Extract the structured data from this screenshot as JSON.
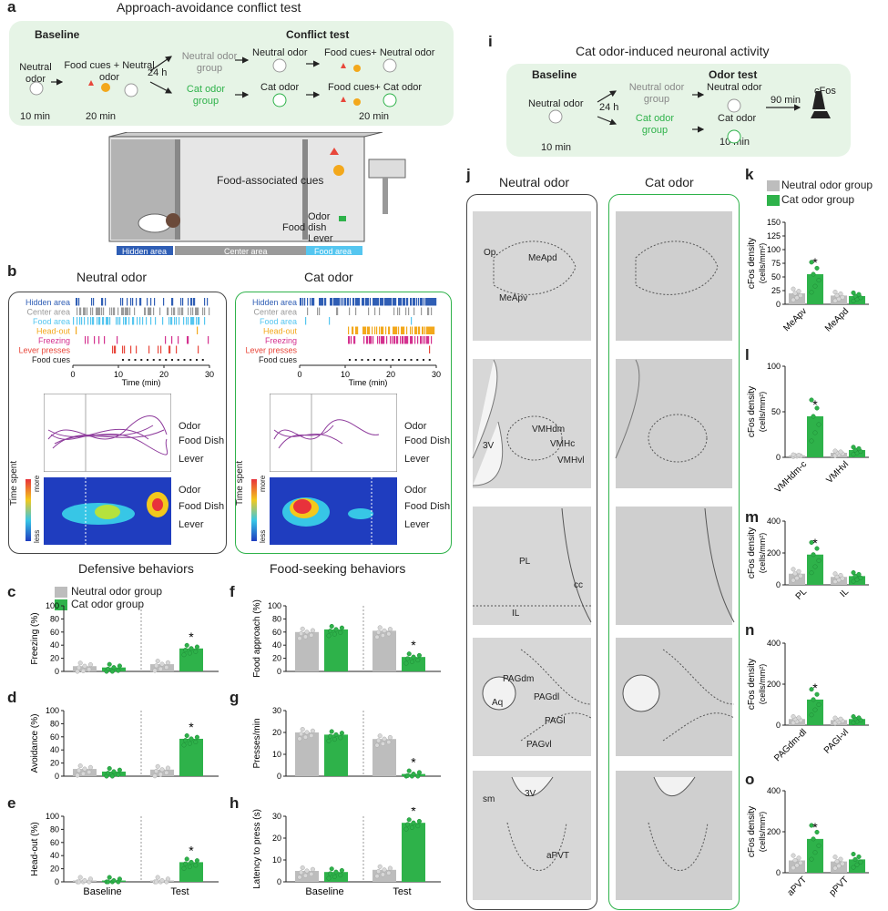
{
  "panel_a": {
    "letter": "a",
    "title": "Approach-avoidance conflict test",
    "baseline_label": "Baseline",
    "conflict_label": "Conflict test",
    "neutral_odor": "Neutral odor",
    "food_cues_neutral": "Food cues + Neutral odor",
    "h24": "24 h",
    "neutral_group": "Neutral odor group",
    "cat_group": "Cat odor group",
    "test_neutral": "Neutral odor",
    "test_cat": "Cat odor",
    "food_neutral": "Food cues+ Neutral odor",
    "food_cat": "Food cues+ Cat odor",
    "t10": "10 min",
    "t20": "20 min",
    "t20b": "20 min",
    "food_assoc": "Food-associated cues",
    "odor": "Odor",
    "food_dish": "Food dish",
    "lever": "Lever",
    "hidden_area": "Hidden area",
    "center_area": "Center area",
    "food_area": "Food area"
  },
  "panel_b": {
    "letter": "b",
    "neutral_title": "Neutral odor",
    "cat_title": "Cat odor",
    "rows": [
      "Hidden area",
      "Center area",
      "Food area",
      "Head-out",
      "Freezing",
      "Lever presses",
      "Food cues"
    ],
    "row_colors": [
      "#2f5eb5",
      "#9a9a9a",
      "#55c6f0",
      "#f3a81c",
      "#d4318f",
      "#e8473b",
      "#222222"
    ],
    "time_label": "Time (min)",
    "ticks": [
      "0",
      "10",
      "20",
      "30"
    ],
    "legend_odor": "Odor",
    "legend_dish": "Food Dish",
    "legend_lever": "Lever",
    "time_spent": "Time spent",
    "more": "more",
    "less": "less"
  },
  "panel_c": {
    "letter": "c",
    "section": "Defensive behaviors",
    "legend_neutral": "Neutral odor group",
    "legend_cat": "Cat odor group",
    "ylabel": "Freezing (%)",
    "yticks": [
      "0",
      "20",
      "40",
      "60",
      "80",
      "100"
    ]
  },
  "panel_d": {
    "letter": "d",
    "ylabel": "Avoidance (%)",
    "yticks": [
      "0",
      "20",
      "40",
      "60",
      "80",
      "100"
    ]
  },
  "panel_e": {
    "letter": "e",
    "ylabel": "Head-out (%)",
    "yticks": [
      "0",
      "20",
      "40",
      "60",
      "80",
      "100"
    ],
    "xlabels": [
      "Baseline",
      "Test"
    ]
  },
  "panel_f": {
    "letter": "f",
    "section": "Food-seeking behaviors",
    "ylabel": "Food approach (%)",
    "yticks": [
      "0",
      "20",
      "40",
      "60",
      "80",
      "100"
    ]
  },
  "panel_g": {
    "letter": "g",
    "ylabel": "Presses/min",
    "yticks": [
      "0",
      "10",
      "20",
      "30"
    ]
  },
  "panel_h": {
    "letter": "h",
    "ylabel": "Latency to press (s)",
    "yticks": [
      "0",
      "10",
      "20",
      "30"
    ],
    "xlabels": [
      "Baseline",
      "Test"
    ]
  },
  "panel_i": {
    "letter": "i",
    "title": "Cat odor-induced neuronal activity",
    "baseline": "Baseline",
    "odor_test": "Odor test",
    "neutral_odor": "Neutral odor",
    "h24": "24 h",
    "neutral_group": "Neutral odor group",
    "cat_group": "Cat odor group",
    "test_neutral": "Neutral odor",
    "test_cat": "Cat odor",
    "min90": "90 min",
    "cfos": "cFos",
    "t10": "10 min",
    "t10b": "10 min"
  },
  "panel_j": {
    "letter": "j",
    "neutral_title": "Neutral odor",
    "cat_title": "Cat odor",
    "slice1": [
      "Op.",
      "MeApd",
      "MeApv"
    ],
    "slice2": [
      "VMHdm",
      "VMHc",
      "VMHvl",
      "3V"
    ],
    "slice3": [
      "PL",
      "cc",
      "IL"
    ],
    "slice4": [
      "PAGdm",
      "PAGdl",
      "PAGl",
      "PAGvl",
      "Aq"
    ],
    "slice5": [
      "sm",
      "3V",
      "aPVT"
    ]
  },
  "panel_k": {
    "letter": "k",
    "legend_neutral": "Neutral odor group",
    "legend_cat": "Cat odor group",
    "ylabel": "cFos density",
    "yunit": "(cells/mm²)",
    "yticks": [
      "0",
      "25",
      "50",
      "75",
      "100",
      "125",
      "150"
    ],
    "xlabels": [
      "MeApv",
      "MeApd"
    ]
  },
  "panel_l": {
    "letter": "l",
    "ylabel": "cFos density",
    "yunit": "(cells/mm²)",
    "yticks": [
      "0",
      "50",
      "100"
    ],
    "xlabels": [
      "VMHdm-c",
      "VMHvl"
    ]
  },
  "panel_m": {
    "letter": "m",
    "ylabel": "cFos density",
    "yunit": "(cells/mm²)",
    "yticks": [
      "0",
      "200",
      "400"
    ],
    "xlabels": [
      "PL",
      "IL"
    ]
  },
  "panel_n": {
    "letter": "n",
    "ylabel": "cFos density",
    "yunit": "(cells/mm²)",
    "yticks": [
      "0",
      "200",
      "400"
    ],
    "xlabels": [
      "PAGdm-dl",
      "PAGl-vl"
    ]
  },
  "panel_o": {
    "letter": "o",
    "ylabel": "cFos density",
    "yunit": "(cells/mm²)",
    "yticks": [
      "0",
      "200",
      "400"
    ],
    "xlabels": [
      "aPVT",
      "pPVT"
    ]
  },
  "colors": {
    "neutral": "#bdbdbd",
    "cat": "#2eb24a",
    "greenbg": "#e6f4e6"
  },
  "chart_data": [
    {
      "id": "c",
      "type": "bar",
      "ylabel": "Freezing (%)",
      "ylim": [
        0,
        100
      ],
      "categories": [
        "Baseline",
        "Test"
      ],
      "series": [
        {
          "name": "Neutral odor group",
          "values": [
            8,
            11
          ]
        },
        {
          "name": "Cat odor group",
          "values": [
            6,
            35
          ]
        }
      ],
      "significant": [
        [
          1,
          1
        ]
      ]
    },
    {
      "id": "d",
      "type": "bar",
      "ylabel": "Avoidance (%)",
      "ylim": [
        0,
        100
      ],
      "categories": [
        "Baseline",
        "Test"
      ],
      "series": [
        {
          "name": "Neutral odor group",
          "values": [
            11,
            10
          ]
        },
        {
          "name": "Cat odor group",
          "values": [
            7,
            57
          ]
        }
      ],
      "significant": [
        [
          1,
          1
        ]
      ]
    },
    {
      "id": "e",
      "type": "bar",
      "ylabel": "Head-out (%)",
      "ylim": [
        0,
        100
      ],
      "categories": [
        "Baseline",
        "Test"
      ],
      "series": [
        {
          "name": "Neutral odor group",
          "values": [
            2,
            2
          ]
        },
        {
          "name": "Cat odor group",
          "values": [
            2,
            30
          ]
        }
      ],
      "significant": [
        [
          1,
          1
        ]
      ]
    },
    {
      "id": "f",
      "type": "bar",
      "ylabel": "Food approach (%)",
      "ylim": [
        0,
        100
      ],
      "categories": [
        "Baseline",
        "Test"
      ],
      "series": [
        {
          "name": "Neutral odor group",
          "values": [
            60,
            62
          ]
        },
        {
          "name": "Cat odor group",
          "values": [
            64,
            22
          ]
        }
      ],
      "significant": [
        [
          1,
          1
        ]
      ]
    },
    {
      "id": "g",
      "type": "bar",
      "ylabel": "Presses/min",
      "ylim": [
        0,
        30
      ],
      "categories": [
        "Baseline",
        "Test"
      ],
      "series": [
        {
          "name": "Neutral odor group",
          "values": [
            20,
            17
          ]
        },
        {
          "name": "Cat odor group",
          "values": [
            19,
            1
          ]
        }
      ],
      "significant": [
        [
          1,
          1
        ]
      ]
    },
    {
      "id": "h",
      "type": "bar",
      "ylabel": "Latency to press (s)",
      "ylim": [
        0,
        30
      ],
      "categories": [
        "Baseline",
        "Test"
      ],
      "series": [
        {
          "name": "Neutral odor group",
          "values": [
            5,
            5.5
          ]
        },
        {
          "name": "Cat odor group",
          "values": [
            4.5,
            27
          ]
        }
      ],
      "significant": [
        [
          1,
          1
        ]
      ]
    },
    {
      "id": "k",
      "type": "bar",
      "ylabel": "cFos density (cells/mm²)",
      "ylim": [
        0,
        150
      ],
      "categories": [
        "MeApv",
        "MeApd"
      ],
      "series": [
        {
          "name": "Neutral odor group",
          "values": [
            20,
            16
          ]
        },
        {
          "name": "Cat odor group",
          "values": [
            55,
            15
          ]
        }
      ],
      "significant": [
        [
          1,
          0
        ]
      ]
    },
    {
      "id": "l",
      "type": "bar",
      "ylabel": "cFos density (cells/mm²)",
      "ylim": [
        0,
        100
      ],
      "categories": [
        "VMHdm-c",
        "VMHvl"
      ],
      "series": [
        {
          "name": "Neutral odor group",
          "values": [
            2,
            5
          ]
        },
        {
          "name": "Cat odor group",
          "values": [
            45,
            8
          ]
        }
      ],
      "significant": [
        [
          1,
          0
        ]
      ]
    },
    {
      "id": "m",
      "type": "bar",
      "ylabel": "cFos density (cells/mm²)",
      "ylim": [
        0,
        400
      ],
      "categories": [
        "PL",
        "IL"
      ],
      "series": [
        {
          "name": "Neutral odor group",
          "values": [
            70,
            50
          ]
        },
        {
          "name": "Cat odor group",
          "values": [
            190,
            55
          ]
        }
      ],
      "significant": [
        [
          1,
          0
        ]
      ]
    },
    {
      "id": "n",
      "type": "bar",
      "ylabel": "cFos density (cells/mm²)",
      "ylim": [
        0,
        400
      ],
      "categories": [
        "PAGdm-dl",
        "PAGl-vl"
      ],
      "series": [
        {
          "name": "Neutral odor group",
          "values": [
            30,
            25
          ]
        },
        {
          "name": "Cat odor group",
          "values": [
            125,
            30
          ]
        }
      ],
      "significant": [
        [
          1,
          0
        ]
      ]
    },
    {
      "id": "o",
      "type": "bar",
      "ylabel": "cFos density (cells/mm²)",
      "ylim": [
        0,
        400
      ],
      "categories": [
        "aPVT",
        "pPVT"
      ],
      "series": [
        {
          "name": "Neutral odor group",
          "values": [
            60,
            55
          ]
        },
        {
          "name": "Cat odor group",
          "values": [
            165,
            65
          ]
        }
      ],
      "significant": [
        [
          1,
          0
        ]
      ]
    }
  ]
}
